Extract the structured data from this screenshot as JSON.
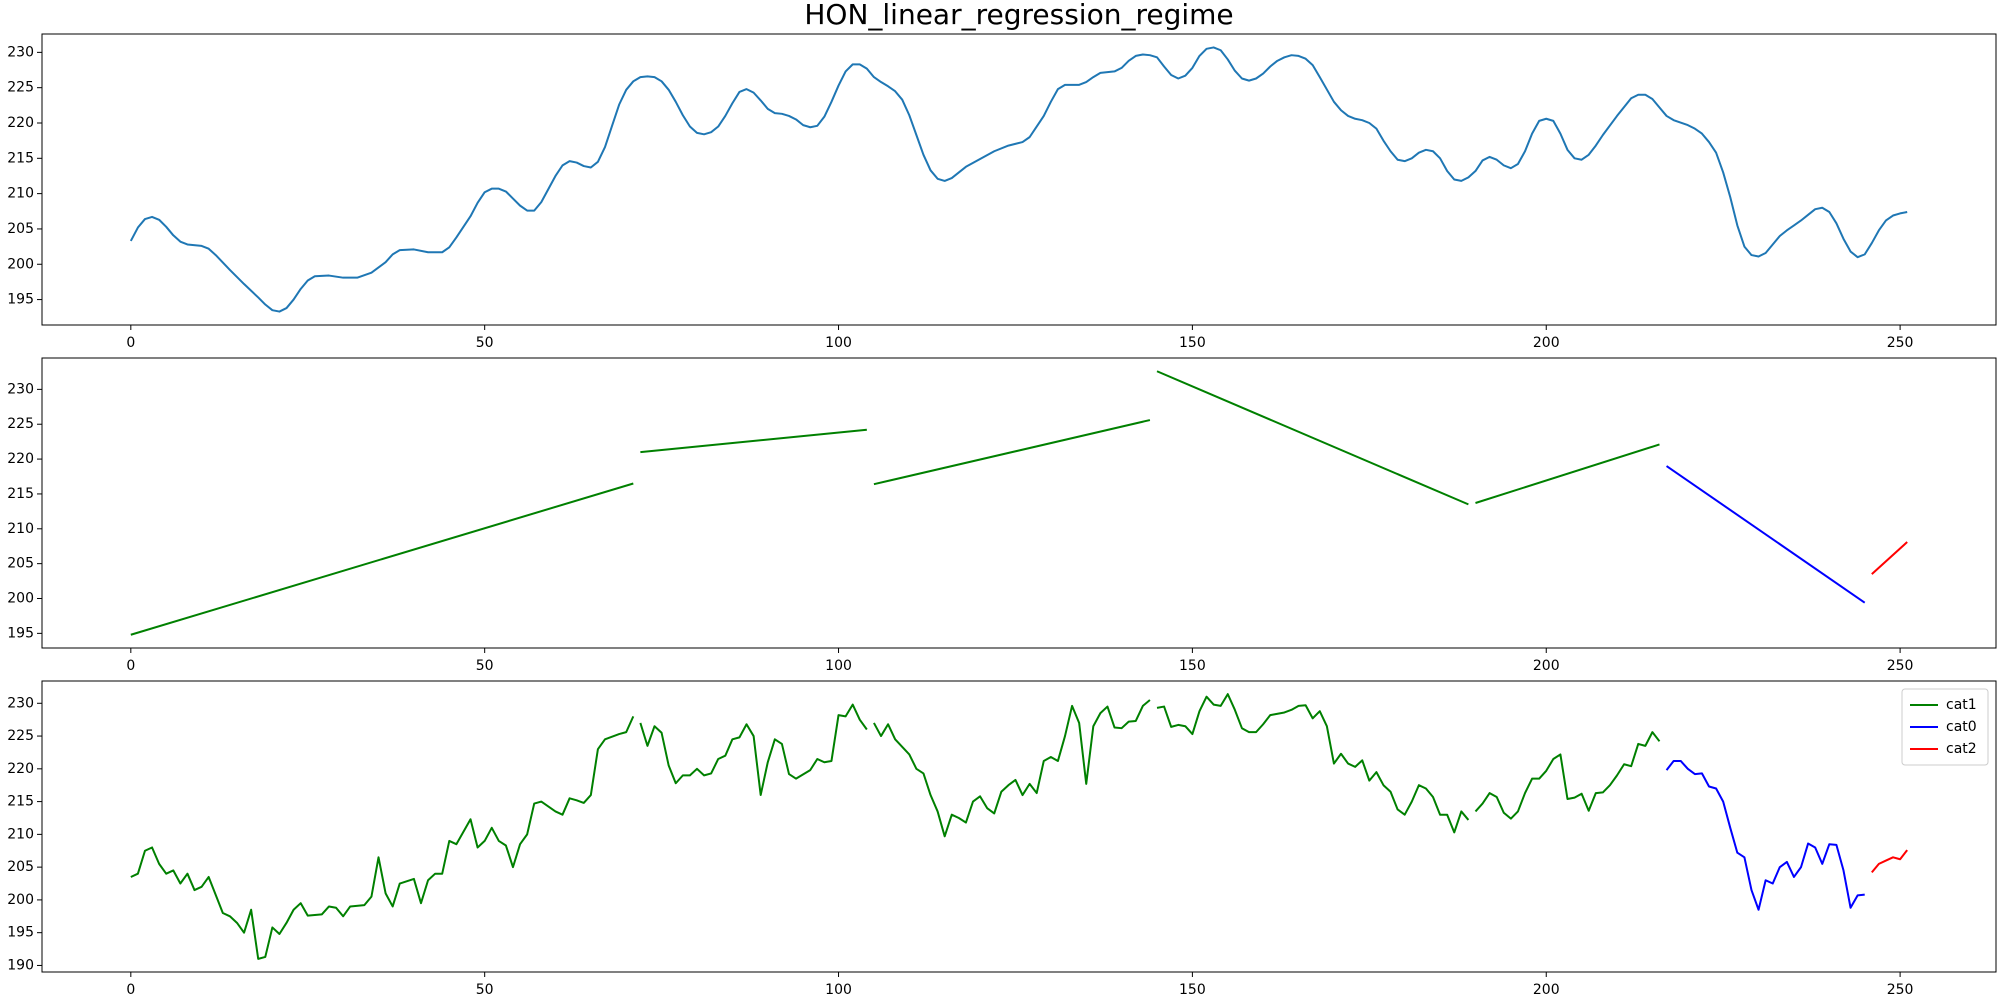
{
  "chart_data": [
    {
      "type": "line",
      "title": "HON_linear_regression_regime",
      "xlim": [
        -12.55,
        263.55
      ],
      "xticks": [
        0,
        50,
        100,
        150,
        200,
        250
      ],
      "ylim": [
        191.4,
        232.6
      ],
      "yticks": [
        195,
        200,
        205,
        210,
        215,
        220,
        225,
        230
      ],
      "series": [
        {
          "color": "#1f77b4",
          "x": [
            0,
            1,
            2,
            3,
            4,
            5,
            6,
            7,
            8,
            10,
            11,
            12,
            14,
            16,
            18,
            19,
            20,
            21,
            22,
            23,
            24,
            25,
            26,
            28,
            30,
            32,
            34,
            36,
            37,
            38,
            40,
            42,
            44,
            45,
            46,
            48,
            49,
            50,
            51,
            52,
            53,
            54,
            55,
            56,
            57,
            58,
            60,
            61,
            62,
            63,
            64,
            65,
            66,
            67,
            68,
            69,
            70,
            71,
            72,
            73,
            74,
            75,
            76,
            77,
            78,
            79,
            80,
            81,
            82,
            83,
            84,
            85,
            86,
            87,
            88,
            89,
            90,
            91,
            92,
            93,
            94,
            95,
            96,
            97,
            98,
            99,
            100,
            101,
            102,
            103,
            104,
            105,
            106,
            107,
            108,
            109,
            110,
            111,
            112,
            113,
            114,
            115,
            116,
            117,
            118,
            120,
            122,
            124,
            126,
            127,
            128,
            129,
            130,
            131,
            132,
            134,
            135,
            136,
            137,
            139,
            140,
            141,
            142,
            143,
            144,
            145,
            146,
            147,
            148,
            149,
            150,
            151,
            152,
            153,
            154,
            155,
            156,
            157,
            158,
            159,
            160,
            161,
            162,
            163,
            164,
            165,
            166,
            167,
            168,
            170,
            171,
            172,
            173,
            174,
            175,
            176,
            177,
            178,
            179,
            180,
            181,
            182,
            183,
            184,
            185,
            186,
            187,
            188,
            189,
            190,
            191,
            192,
            193,
            194,
            195,
            196,
            197,
            198,
            199,
            200,
            201,
            202,
            203,
            204,
            205,
            206,
            207,
            208,
            210,
            212,
            213,
            214,
            215,
            216,
            217,
            218,
            220,
            221,
            222,
            223,
            224,
            225,
            226,
            227,
            228,
            229,
            230,
            231,
            232,
            233,
            234,
            235,
            236,
            237,
            238,
            239,
            240,
            241,
            242,
            243,
            244,
            245,
            246,
            247,
            248,
            249,
            250,
            251
          ],
          "values": [
            203.3,
            205.2,
            206.4,
            206.7,
            206.3,
            205.3,
            204.1,
            203.2,
            202.8,
            202.6,
            202.2,
            201.3,
            199.2,
            197.2,
            195.3,
            194.3,
            193.5,
            193.3,
            193.8,
            195,
            196.5,
            197.7,
            198.3,
            198.4,
            198.1,
            198.1,
            198.8,
            200.3,
            201.4,
            202,
            202.1,
            201.7,
            201.7,
            202.4,
            203.8,
            206.8,
            208.7,
            210.2,
            210.7,
            210.7,
            210.3,
            209.3,
            208.3,
            207.6,
            207.6,
            208.8,
            212.5,
            214,
            214.6,
            214.4,
            213.9,
            213.7,
            214.5,
            216.6,
            219.6,
            222.6,
            224.7,
            225.9,
            226.5,
            226.6,
            226.5,
            225.9,
            224.7,
            223,
            221.1,
            219.5,
            218.6,
            218.4,
            218.7,
            219.5,
            221,
            222.8,
            224.4,
            224.8,
            224.3,
            223.2,
            222,
            221.4,
            221.3,
            221,
            220.5,
            219.7,
            219.4,
            219.6,
            220.9,
            223,
            225.3,
            227.3,
            228.3,
            228.3,
            227.7,
            226.5,
            225.8,
            225.2,
            224.5,
            223.3,
            221.1,
            218.3,
            215.5,
            213.3,
            212.1,
            211.8,
            212.2,
            213,
            213.8,
            214.9,
            216,
            216.8,
            217.3,
            218,
            219.5,
            221,
            223,
            224.8,
            225.4,
            225.4,
            225.8,
            226.5,
            227.1,
            227.3,
            227.8,
            228.8,
            229.5,
            229.7,
            229.6,
            229.3,
            228,
            226.8,
            226.3,
            226.7,
            227.8,
            229.5,
            230.5,
            230.7,
            230.3,
            229,
            227.4,
            226.3,
            226,
            226.3,
            227,
            228,
            228.8,
            229.3,
            229.6,
            229.5,
            229.1,
            228.2,
            226.5,
            223,
            221.8,
            221,
            220.6,
            220.4,
            220,
            219.2,
            217.5,
            216,
            214.8,
            214.6,
            215,
            215.8,
            216.2,
            216,
            215,
            213.2,
            212,
            211.8,
            212.3,
            213.2,
            214.7,
            215.2,
            214.8,
            214,
            213.6,
            214.2,
            216,
            218.5,
            220.3,
            220.6,
            220.3,
            218.5,
            216.2,
            215,
            214.8,
            215.5,
            216.8,
            218.3,
            221,
            223.5,
            224,
            224,
            223.4,
            222.2,
            221,
            220.4,
            219.7,
            219.2,
            218.5,
            217.3,
            215.8,
            213,
            209.5,
            205.5,
            202.5,
            201.3,
            201.1,
            201.6,
            202.8,
            204,
            204.8,
            205.5,
            206.2,
            207,
            207.8,
            208,
            207.4,
            205.8,
            203.6,
            201.8,
            201,
            201.4,
            203,
            204.8,
            206.2,
            206.9,
            207.2,
            207.4
          ]
        }
      ]
    },
    {
      "type": "line",
      "xlim": [
        -12.55,
        263.55
      ],
      "xticks": [
        0,
        50,
        100,
        150,
        200,
        250
      ],
      "ylim": [
        192.9,
        234.5
      ],
      "yticks": [
        195,
        200,
        205,
        210,
        215,
        220,
        225,
        230
      ],
      "series": [
        {
          "color": "#008000",
          "x": [
            0,
            71
          ],
          "values": [
            194.8,
            216.5
          ]
        },
        {
          "color": "#008000",
          "x": [
            72,
            104
          ],
          "values": [
            221.0,
            224.2
          ]
        },
        {
          "color": "#008000",
          "x": [
            105,
            144
          ],
          "values": [
            216.4,
            225.6
          ]
        },
        {
          "color": "#008000",
          "x": [
            145,
            189
          ],
          "values": [
            232.6,
            213.5
          ]
        },
        {
          "color": "#008000",
          "x": [
            190,
            216
          ],
          "values": [
            213.7,
            222.1
          ]
        },
        {
          "color": "#0000ff",
          "x": [
            217,
            245
          ],
          "values": [
            219.0,
            199.4
          ]
        },
        {
          "color": "#ff0000",
          "x": [
            246,
            251
          ],
          "values": [
            203.5,
            208.1
          ]
        }
      ]
    },
    {
      "type": "line",
      "legend": "upper right",
      "xlim": [
        -12.55,
        263.55
      ],
      "xticks": [
        0,
        50,
        100,
        150,
        200,
        250
      ],
      "ylim": [
        189.0,
        233.4
      ],
      "yticks": [
        190,
        195,
        200,
        205,
        210,
        215,
        220,
        225,
        230
      ],
      "series": [
        {
          "name": "cat1",
          "color": "#008000",
          "x": [
            0,
            1,
            2,
            3,
            4,
            5,
            6,
            7,
            8,
            9,
            10,
            11,
            13,
            14,
            15,
            16,
            17,
            18,
            19,
            20,
            21,
            22,
            23,
            24,
            25,
            27,
            28,
            29,
            30,
            31,
            33,
            34,
            35,
            36,
            37,
            38,
            40,
            41,
            42,
            43,
            44,
            45,
            46,
            48,
            49,
            50,
            51,
            52,
            53,
            54,
            55,
            56,
            57,
            58,
            60,
            61,
            62,
            63,
            64,
            65,
            66,
            67,
            69,
            70,
            71,
            null,
            72,
            73,
            74,
            75,
            76,
            77,
            78,
            79,
            80,
            81,
            82,
            83,
            84,
            85,
            86,
            87,
            88,
            89,
            90,
            91,
            92,
            93,
            94,
            96,
            97,
            98,
            99,
            100,
            101,
            102,
            103,
            104,
            null,
            105,
            106,
            107,
            108,
            110,
            111,
            112,
            113,
            114,
            115,
            116,
            117,
            118,
            119,
            120,
            121,
            122,
            123,
            124,
            125,
            126,
            127,
            128,
            129,
            130,
            131,
            132,
            133,
            134,
            135,
            136,
            137,
            138,
            139,
            140,
            141,
            142,
            143,
            144,
            null,
            145,
            146,
            147,
            148,
            149,
            150,
            151,
            152,
            153,
            154,
            155,
            156,
            157,
            158,
            159,
            160,
            161,
            163,
            164,
            165,
            166,
            167,
            168,
            169,
            170,
            171,
            172,
            173,
            174,
            175,
            176,
            177,
            178,
            179,
            180,
            181,
            182,
            183,
            184,
            185,
            186,
            187,
            188,
            189,
            null,
            190,
            191,
            192,
            193,
            194,
            195,
            196,
            197,
            198,
            199,
            200,
            201,
            202,
            203,
            204,
            205,
            206,
            207,
            208,
            209,
            210,
            211,
            212,
            213,
            214,
            215,
            216
          ],
          "values": [
            203.5,
            204,
            207.5,
            208,
            205.5,
            204,
            204.5,
            202.5,
            204,
            201.5,
            202,
            203.5,
            198,
            197.5,
            196.5,
            195,
            198.5,
            191,
            191.3,
            195.8,
            194.8,
            196.5,
            198.5,
            199.5,
            197.6,
            197.8,
            199,
            198.8,
            197.5,
            199,
            199.2,
            200.5,
            206.5,
            201,
            199,
            202.5,
            203.2,
            199.5,
            203,
            204,
            204,
            209,
            208.5,
            212.3,
            208,
            209,
            211,
            209,
            208.3,
            205,
            208.5,
            210,
            214.7,
            215,
            213.5,
            213,
            215.5,
            215.2,
            214.8,
            216,
            223,
            224.5,
            225.3,
            225.6,
            228,
            null,
            227,
            223.5,
            226.5,
            225.5,
            220.5,
            217.8,
            219,
            219,
            220,
            219,
            219.3,
            221.5,
            222,
            224.5,
            224.8,
            226.8,
            225,
            216,
            221,
            224.5,
            223.8,
            219.2,
            218.5,
            219.8,
            221.5,
            221,
            221.2,
            228.2,
            228,
            229.8,
            227.5,
            226,
            null,
            227,
            225,
            226.8,
            224.5,
            222.2,
            220,
            219.3,
            216,
            213.5,
            209.7,
            213,
            212.5,
            211.8,
            215,
            215.8,
            214,
            213.2,
            216.5,
            217.5,
            218.3,
            216,
            217.7,
            216.3,
            221.2,
            221.8,
            221.2,
            225,
            229.6,
            227,
            217.7,
            226.5,
            228.5,
            229.5,
            226.3,
            226.2,
            227.2,
            227.3,
            229.6,
            230.5,
            null,
            229.3,
            229.5,
            226.4,
            226.7,
            226.5,
            225.3,
            228.8,
            231,
            229.8,
            229.6,
            231.4,
            229,
            226.2,
            225.6,
            225.6,
            226.8,
            228.2,
            228.6,
            229,
            229.6,
            229.7,
            227.7,
            228.8,
            226.5,
            220.8,
            222.3,
            220.8,
            220.3,
            221.3,
            218.2,
            219.5,
            217.5,
            216.5,
            213.8,
            213,
            215,
            217.5,
            217,
            215.7,
            213,
            213,
            210.3,
            213.5,
            212.2,
            null,
            213.5,
            214.7,
            216.3,
            215.7,
            213.3,
            212.4,
            213.5,
            216.3,
            218.5,
            218.5,
            219.7,
            221.5,
            222.2,
            215.4,
            215.6,
            216.2,
            213.6,
            216.3,
            216.4,
            217.5,
            219,
            220.7,
            220.4,
            223.8,
            223.5,
            225.6,
            224.2
          ]
        },
        {
          "name": "cat0",
          "color": "#0000ff",
          "x": [
            217,
            218,
            219,
            220,
            221,
            222,
            223,
            224,
            225,
            226,
            227,
            228,
            229,
            230,
            231,
            232,
            233,
            234,
            235,
            236,
            237,
            238,
            239,
            240,
            241,
            242,
            243,
            244,
            245
          ],
          "values": [
            219.8,
            221.2,
            221.2,
            220,
            219.2,
            219.3,
            217.3,
            217,
            215,
            211,
            207.2,
            206.5,
            201.5,
            198.5,
            203,
            202.5,
            205,
            205.8,
            203.5,
            205,
            208.6,
            208,
            205.5,
            208.5,
            208.4,
            204.5,
            198.8,
            200.7,
            200.8
          ]
        },
        {
          "name": "cat2",
          "color": "#ff0000",
          "x": [
            246,
            247,
            248,
            249,
            250,
            251
          ],
          "values": [
            204.2,
            205.5,
            206,
            206.5,
            206.2,
            207.6
          ]
        }
      ]
    }
  ]
}
